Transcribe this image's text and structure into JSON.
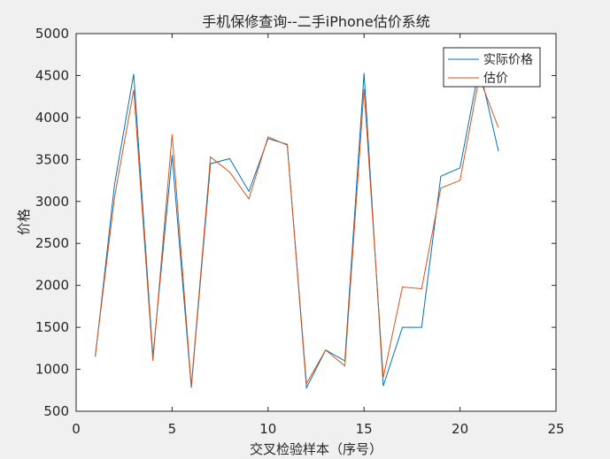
{
  "figure": {
    "background": "#f0f0f0",
    "axes_background": "#ffffff"
  },
  "chart_data": {
    "type": "line",
    "title": "手机保修查询--二手iPhone估价系统",
    "xlabel": "交叉检验样本（序号）",
    "ylabel": "价格",
    "xlim": [
      0,
      25
    ],
    "ylim": [
      500,
      5000
    ],
    "xticks": [
      0,
      5,
      10,
      15,
      20,
      25
    ],
    "yticks": [
      500,
      1000,
      1500,
      2000,
      2500,
      3000,
      3500,
      4000,
      4500,
      5000
    ],
    "grid": false,
    "legend_position": "top-right",
    "x": [
      1,
      2,
      3,
      4,
      5,
      6,
      7,
      8,
      9,
      10,
      11,
      12,
      13,
      14,
      15,
      16,
      17,
      18,
      19,
      20,
      21,
      22
    ],
    "series": [
      {
        "name": "实际价格",
        "color": "#0072bd",
        "values": [
          1150,
          3200,
          4520,
          1150,
          3550,
          780,
          3450,
          3510,
          3120,
          3750,
          3680,
          780,
          1230,
          1100,
          4530,
          800,
          1500,
          1500,
          3300,
          3400,
          4600,
          3600
        ]
      },
      {
        "name": "估价",
        "color": "#d95319",
        "values": [
          1170,
          3050,
          4330,
          1100,
          3800,
          800,
          3530,
          3350,
          3030,
          3770,
          3670,
          830,
          1230,
          1040,
          4340,
          900,
          1980,
          1960,
          3160,
          3250,
          4480,
          3880
        ]
      }
    ]
  }
}
